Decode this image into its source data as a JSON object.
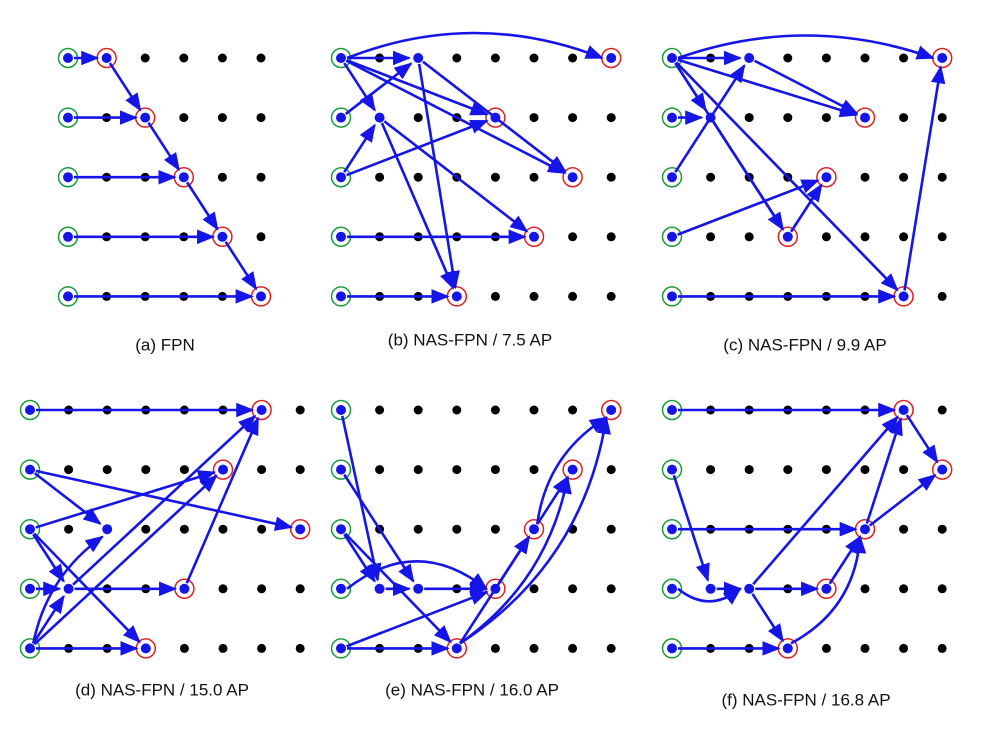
{
  "panels": [
    {
      "caption": "(a) FPN"
    },
    {
      "caption": "(b) NAS-FPN / 7.5 AP"
    },
    {
      "caption": "(c) NAS-FPN / 9.9 AP"
    },
    {
      "caption": "(d) NAS-FPN / 15.0 AP"
    },
    {
      "caption": "(e) NAS-FPN / 16.0 AP"
    },
    {
      "caption": "(f) NAS-FPN / 16.8 AP"
    }
  ]
}
